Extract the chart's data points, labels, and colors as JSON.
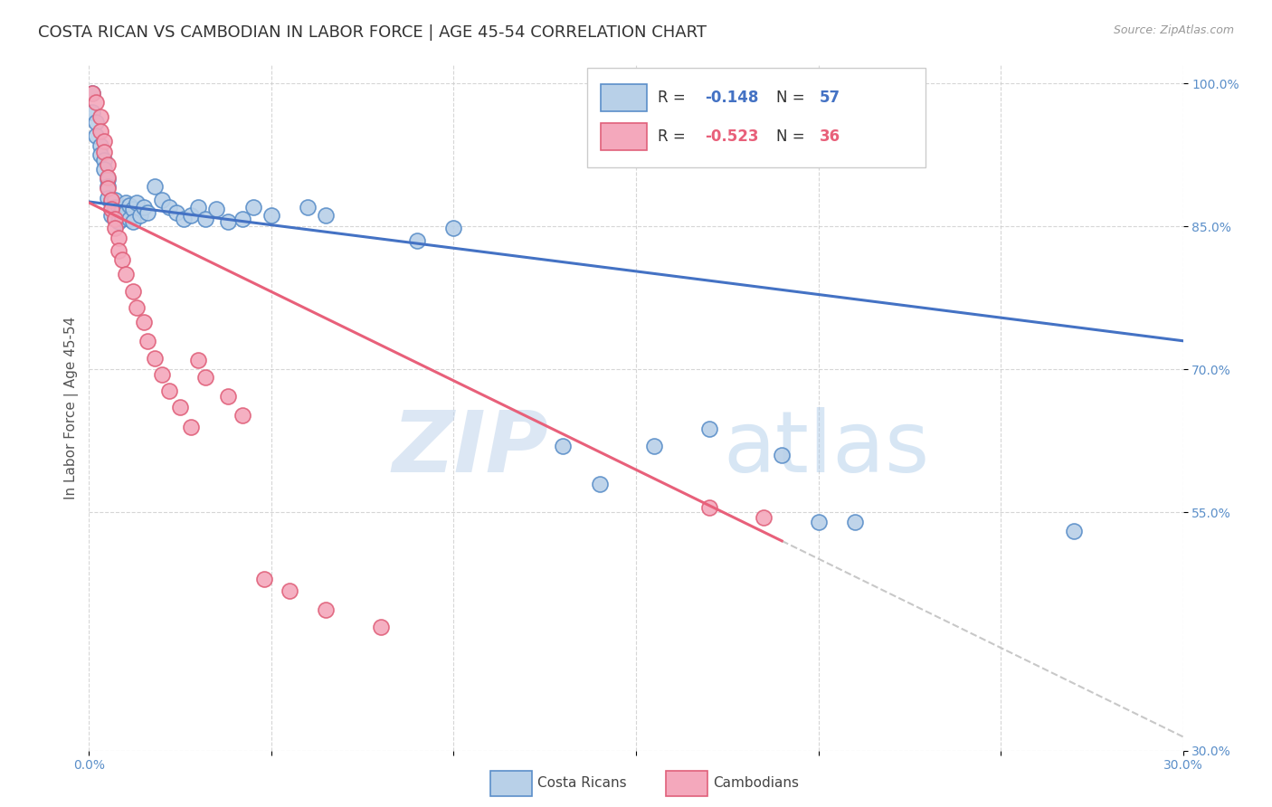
{
  "title": "COSTA RICAN VS CAMBODIAN IN LABOR FORCE | AGE 45-54 CORRELATION CHART",
  "source": "Source: ZipAtlas.com",
  "ylabel": "In Labor Force | Age 45-54",
  "xlim": [
    0.0,
    0.3
  ],
  "ylim": [
    0.3,
    1.02
  ],
  "y_ticks": [
    0.3,
    0.55,
    0.7,
    0.85,
    1.0
  ],
  "y_tick_labels": [
    "30.0%",
    "55.0%",
    "70.0%",
    "85.0%",
    "100.0%"
  ],
  "blue_R": "-0.148",
  "blue_N": "57",
  "pink_R": "-0.523",
  "pink_N": "36",
  "blue_color": "#b8d0e8",
  "pink_color": "#f4a8bc",
  "blue_edge_color": "#5b8fc9",
  "pink_edge_color": "#e0607a",
  "blue_line_color": "#4472c4",
  "pink_line_color": "#e8607a",
  "blue_scatter": [
    [
      0.001,
      0.99
    ],
    [
      0.001,
      0.97
    ],
    [
      0.002,
      0.96
    ],
    [
      0.002,
      0.945
    ],
    [
      0.003,
      0.935
    ],
    [
      0.003,
      0.925
    ],
    [
      0.004,
      0.92
    ],
    [
      0.004,
      0.91
    ],
    [
      0.005,
      0.9
    ],
    [
      0.005,
      0.892
    ],
    [
      0.005,
      0.88
    ],
    [
      0.006,
      0.875
    ],
    [
      0.006,
      0.868
    ],
    [
      0.006,
      0.862
    ],
    [
      0.007,
      0.878
    ],
    [
      0.007,
      0.87
    ],
    [
      0.007,
      0.858
    ],
    [
      0.008,
      0.87
    ],
    [
      0.008,
      0.862
    ],
    [
      0.008,
      0.855
    ],
    [
      0.009,
      0.868
    ],
    [
      0.009,
      0.858
    ],
    [
      0.01,
      0.875
    ],
    [
      0.01,
      0.865
    ],
    [
      0.011,
      0.872
    ],
    [
      0.011,
      0.858
    ],
    [
      0.012,
      0.868
    ],
    [
      0.012,
      0.855
    ],
    [
      0.013,
      0.875
    ],
    [
      0.014,
      0.862
    ],
    [
      0.015,
      0.87
    ],
    [
      0.016,
      0.865
    ],
    [
      0.018,
      0.892
    ],
    [
      0.02,
      0.878
    ],
    [
      0.022,
      0.87
    ],
    [
      0.024,
      0.865
    ],
    [
      0.026,
      0.858
    ],
    [
      0.028,
      0.862
    ],
    [
      0.03,
      0.87
    ],
    [
      0.032,
      0.858
    ],
    [
      0.035,
      0.868
    ],
    [
      0.038,
      0.855
    ],
    [
      0.042,
      0.858
    ],
    [
      0.045,
      0.87
    ],
    [
      0.05,
      0.862
    ],
    [
      0.06,
      0.87
    ],
    [
      0.065,
      0.862
    ],
    [
      0.09,
      0.835
    ],
    [
      0.1,
      0.848
    ],
    [
      0.13,
      0.62
    ],
    [
      0.14,
      0.58
    ],
    [
      0.155,
      0.62
    ],
    [
      0.17,
      0.638
    ],
    [
      0.19,
      0.61
    ],
    [
      0.2,
      0.54
    ],
    [
      0.21,
      0.54
    ],
    [
      0.27,
      0.53
    ]
  ],
  "pink_scatter": [
    [
      0.001,
      0.99
    ],
    [
      0.002,
      0.98
    ],
    [
      0.003,
      0.965
    ],
    [
      0.003,
      0.95
    ],
    [
      0.004,
      0.94
    ],
    [
      0.004,
      0.928
    ],
    [
      0.005,
      0.915
    ],
    [
      0.005,
      0.902
    ],
    [
      0.005,
      0.89
    ],
    [
      0.006,
      0.878
    ],
    [
      0.006,
      0.868
    ],
    [
      0.007,
      0.858
    ],
    [
      0.007,
      0.848
    ],
    [
      0.008,
      0.838
    ],
    [
      0.008,
      0.825
    ],
    [
      0.009,
      0.815
    ],
    [
      0.01,
      0.8
    ],
    [
      0.012,
      0.782
    ],
    [
      0.013,
      0.765
    ],
    [
      0.015,
      0.75
    ],
    [
      0.016,
      0.73
    ],
    [
      0.018,
      0.712
    ],
    [
      0.02,
      0.695
    ],
    [
      0.022,
      0.678
    ],
    [
      0.025,
      0.66
    ],
    [
      0.028,
      0.64
    ],
    [
      0.03,
      0.71
    ],
    [
      0.032,
      0.692
    ],
    [
      0.038,
      0.672
    ],
    [
      0.042,
      0.652
    ],
    [
      0.048,
      0.48
    ],
    [
      0.055,
      0.468
    ],
    [
      0.065,
      0.448
    ],
    [
      0.08,
      0.43
    ],
    [
      0.17,
      0.555
    ],
    [
      0.185,
      0.545
    ]
  ],
  "watermark_zip": "ZIP",
  "watermark_atlas": "atlas",
  "background_color": "#ffffff",
  "grid_color": "#cccccc",
  "title_fontsize": 13,
  "axis_label_fontsize": 11,
  "tick_fontsize": 10,
  "tick_color": "#5b8fc9"
}
